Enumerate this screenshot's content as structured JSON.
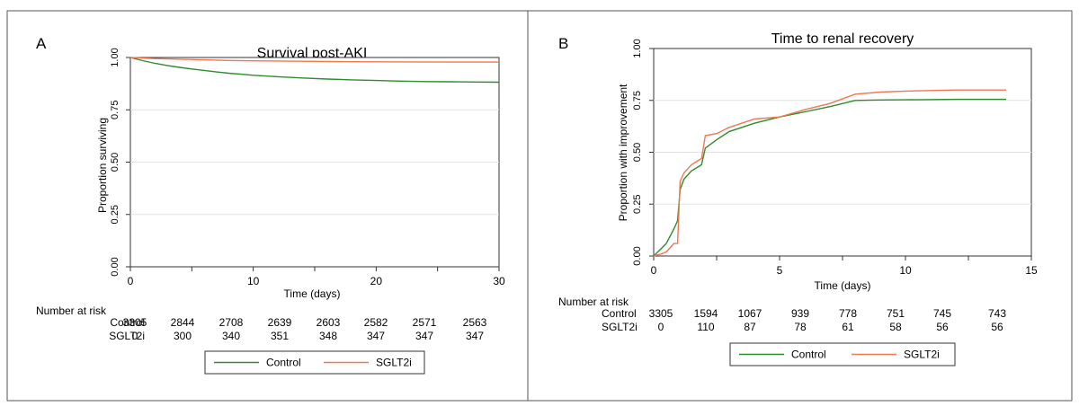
{
  "chart_data": [
    {
      "type": "line",
      "panel_letter": "A",
      "title": "Survival post-AKI",
      "xlabel": "Time (days)",
      "ylabel": "Proportion surviving",
      "xlim": [
        0,
        30
      ],
      "ylim": [
        0,
        1
      ],
      "x_ticks": [
        "0",
        "10",
        "20",
        "30"
      ],
      "y_ticks": [
        "0.00",
        "0.25",
        "0.50",
        "0.75",
        "1.00"
      ],
      "grid": "horizontal",
      "series": [
        {
          "name": "Control",
          "color": "#2e8b2e",
          "x": [
            0,
            1,
            2,
            3,
            4,
            5,
            6,
            7,
            8,
            9,
            10,
            12,
            14,
            16,
            18,
            20,
            22,
            24,
            26,
            28,
            30
          ],
          "y": [
            1.0,
            0.985,
            0.972,
            0.962,
            0.953,
            0.945,
            0.938,
            0.931,
            0.925,
            0.92,
            0.915,
            0.908,
            0.902,
            0.897,
            0.893,
            0.89,
            0.887,
            0.885,
            0.884,
            0.883,
            0.882
          ]
        },
        {
          "name": "SGLT2i",
          "color": "#f07850",
          "x": [
            0,
            1,
            2,
            4,
            6,
            8,
            10,
            14,
            18,
            22,
            26,
            30
          ],
          "y": [
            1.0,
            0.997,
            0.995,
            0.992,
            0.989,
            0.986,
            0.984,
            0.982,
            0.98,
            0.979,
            0.978,
            0.978
          ]
        }
      ],
      "risk_table": {
        "header": "Number at risk",
        "rows": [
          {
            "label": "Control",
            "values": [
              "3305",
              "2844",
              "2708",
              "2639",
              "2603",
              "2582",
              "2571",
              "2563"
            ]
          },
          {
            "label": "SGLT2i",
            "values": [
              "0",
              "300",
              "340",
              "351",
              "348",
              "347",
              "347",
              "347"
            ]
          }
        ]
      },
      "legend": [
        "Control",
        "SGLT2i"
      ],
      "legend_position": "bottom"
    },
    {
      "type": "line",
      "panel_letter": "B",
      "title": "Time to renal recovery",
      "xlabel": "Time (days)",
      "ylabel": "Proportion with improvement",
      "xlim": [
        0,
        15
      ],
      "ylim": [
        0,
        1
      ],
      "x_ticks": [
        "0",
        "5",
        "10",
        "15"
      ],
      "y_ticks": [
        "0.00",
        "0.25",
        "0.50",
        "0.75",
        "1.00"
      ],
      "grid": "horizontal",
      "series": [
        {
          "name": "Control",
          "color": "#2e8b2e",
          "x": [
            0,
            0.5,
            0.8,
            0.95,
            1.05,
            1.2,
            1.5,
            1.9,
            2.05,
            2.5,
            3,
            4,
            5,
            6,
            7,
            8,
            9,
            10,
            12,
            14
          ],
          "y": [
            0,
            0.06,
            0.13,
            0.17,
            0.32,
            0.37,
            0.41,
            0.44,
            0.52,
            0.56,
            0.6,
            0.64,
            0.67,
            0.695,
            0.72,
            0.75,
            0.752,
            0.753,
            0.755,
            0.755
          ]
        },
        {
          "name": "SGLT2i",
          "color": "#f07850",
          "x": [
            0,
            0.3,
            0.5,
            0.8,
            0.95,
            1.05,
            1.2,
            1.5,
            1.9,
            2.05,
            2.5,
            3,
            4,
            5,
            6,
            7,
            8,
            9,
            10,
            12,
            14
          ],
          "y": [
            0,
            0.01,
            0.02,
            0.06,
            0.06,
            0.36,
            0.4,
            0.44,
            0.47,
            0.58,
            0.59,
            0.62,
            0.66,
            0.67,
            0.705,
            0.735,
            0.78,
            0.79,
            0.795,
            0.8,
            0.8
          ]
        }
      ],
      "risk_table": {
        "header": "Number at risk",
        "rows": [
          {
            "label": "Control",
            "values": [
              "3305",
              "1594",
              "1067",
              "939",
              "778",
              "751",
              "745",
              "743"
            ]
          },
          {
            "label": "SGLT2i",
            "values": [
              "0",
              "110",
              "87",
              "78",
              "61",
              "58",
              "56",
              "56"
            ]
          }
        ]
      },
      "legend": [
        "Control",
        "SGLT2i"
      ],
      "legend_position": "bottom"
    }
  ]
}
